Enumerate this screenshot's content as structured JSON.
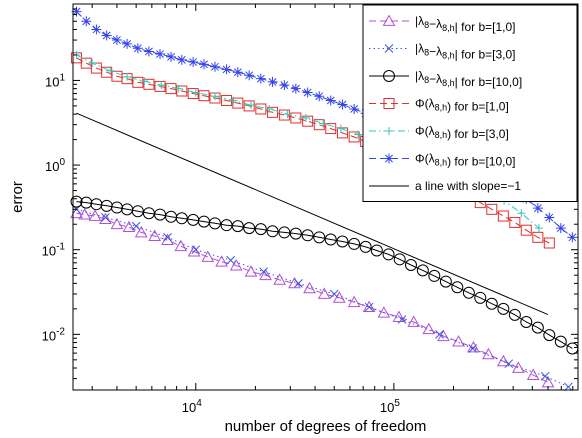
{
  "chart_data": {
    "type": "line",
    "title": "",
    "xlabel": "number of degrees of freedom",
    "ylabel": "error",
    "x_scale": "log",
    "y_scale": "log",
    "xlim": [
      2400,
      850000
    ],
    "ylim": [
      0.0022,
      80
    ],
    "x_ticks": [
      {
        "value": 10000,
        "mantissa": "10",
        "exp": "4"
      },
      {
        "value": 100000,
        "mantissa": "10",
        "exp": "5"
      }
    ],
    "y_ticks": [
      {
        "value": 0.01,
        "mantissa": "10",
        "exp": "-2"
      },
      {
        "value": 0.1,
        "mantissa": "10",
        "exp": "-1"
      },
      {
        "value": 1,
        "mantissa": "10",
        "exp": "0"
      },
      {
        "value": 10,
        "mantissa": "10",
        "exp": "1"
      }
    ],
    "grid": false,
    "legend_position": "top-right",
    "series": [
      {
        "name": "|λ8−λ8,h| for b=[1,0]",
        "color": "#b24fd8",
        "marker": "triangle",
        "dash": "dashed",
        "x": [
          2500,
          2750,
          3100,
          3500,
          4000,
          4600,
          5300,
          6200,
          7200,
          8400,
          9800,
          11500,
          13500,
          16000,
          19000,
          22500,
          26500,
          31500,
          37500,
          44500,
          53000,
          63000,
          75000,
          89000,
          106000,
          126000,
          150000,
          178000,
          212000,
          252000,
          300000,
          357000,
          425000,
          505000,
          600000
        ],
        "y": [
          0.27,
          0.26,
          0.25,
          0.23,
          0.2,
          0.185,
          0.16,
          0.145,
          0.13,
          0.11,
          0.095,
          0.082,
          0.072,
          0.065,
          0.055,
          0.05,
          0.044,
          0.04,
          0.035,
          0.03,
          0.027,
          0.024,
          0.021,
          0.018,
          0.016,
          0.014,
          0.0115,
          0.0095,
          0.0082,
          0.007,
          0.0058,
          0.0048,
          0.004,
          0.0033,
          0.0027
        ]
      },
      {
        "name": "|λ8−λ8,h| for b=[3,0]",
        "color": "#3a58d8",
        "marker": "x",
        "dash": "dotted",
        "x": [
          2500,
          3500,
          5000,
          7200,
          10000,
          15000,
          22000,
          33000,
          50000,
          75000,
          110000,
          170000,
          250000,
          380000,
          580000,
          760000
        ],
        "y": [
          0.3,
          0.24,
          0.19,
          0.14,
          0.1,
          0.075,
          0.055,
          0.04,
          0.03,
          0.021,
          0.015,
          0.01,
          0.0068,
          0.0045,
          0.0032,
          0.0024
        ]
      },
      {
        "name": "|λ8−λ8,h| for b=[10,0]",
        "color": "#000000",
        "marker": "circle",
        "dash": "solid",
        "x": [
          2500,
          2800,
          3150,
          3550,
          4000,
          4500,
          5100,
          5800,
          6600,
          7500,
          8500,
          9700,
          11000,
          12500,
          14300,
          16300,
          18600,
          21300,
          24400,
          28000,
          32000,
          36700,
          42000,
          48000,
          55000,
          63000,
          72000,
          82000,
          94000,
          107000,
          122000,
          140000,
          160000,
          183000,
          209000,
          239000,
          273000,
          312000,
          357000,
          408000,
          466000,
          533000,
          609000,
          696000,
          796000
        ],
        "y": [
          0.37,
          0.36,
          0.345,
          0.33,
          0.315,
          0.3,
          0.285,
          0.27,
          0.26,
          0.245,
          0.235,
          0.225,
          0.215,
          0.205,
          0.195,
          0.19,
          0.18,
          0.175,
          0.165,
          0.16,
          0.155,
          0.148,
          0.14,
          0.132,
          0.125,
          0.117,
          0.108,
          0.098,
          0.088,
          0.077,
          0.066,
          0.057,
          0.049,
          0.042,
          0.036,
          0.031,
          0.027,
          0.023,
          0.02,
          0.017,
          0.014,
          0.012,
          0.0098,
          0.0082,
          0.0068
        ]
      },
      {
        "name": "Φ(λ8,h) for b=[1,0]",
        "color": "#e03030",
        "marker": "square",
        "dash": "dashed",
        "x": [
          2500,
          2800,
          3150,
          3550,
          4000,
          4500,
          5100,
          5800,
          6600,
          7500,
          8500,
          9700,
          11000,
          12500,
          14300,
          16300,
          18600,
          21300,
          24400,
          28000,
          32000,
          36700,
          42000,
          48000,
          55000,
          63000,
          72000,
          82000,
          94000,
          107000,
          122000,
          140000,
          160000,
          183000,
          209000,
          239000,
          273000,
          312000,
          357000,
          408000,
          466000,
          533000,
          609000
        ],
        "y": [
          18.5,
          16,
          14,
          12.5,
          11.2,
          10.5,
          9.5,
          9,
          8.5,
          8,
          7.5,
          7,
          6.6,
          6.2,
          5.8,
          5.4,
          5,
          4.6,
          4.2,
          3.9,
          3.6,
          3.3,
          3,
          2.7,
          2.4,
          2.15,
          1.9,
          1.65,
          1.45,
          1.25,
          1.05,
          0.9,
          0.75,
          0.63,
          0.52,
          0.43,
          0.36,
          0.3,
          0.25,
          0.21,
          0.17,
          0.14,
          0.12
        ]
      },
      {
        "name": "Φ(λ8,h) for b=[3,0]",
        "color": "#38c6b8",
        "marker": "plus",
        "dash": "dashdot",
        "x": [
          2500,
          3000,
          3700,
          4500,
          5500,
          6700,
          8200,
          10000,
          12500,
          15500,
          19000,
          23500,
          29000,
          36000,
          44000,
          54000,
          66000,
          82000,
          100000,
          125000,
          155000,
          190000,
          235000,
          290000,
          360000,
          440000,
          540000
        ],
        "y": [
          20,
          16,
          13,
          11,
          9.8,
          8.8,
          8,
          7.2,
          6.5,
          5.8,
          5.1,
          4.6,
          4,
          3.6,
          3.1,
          2.7,
          2.3,
          1.95,
          1.6,
          1.3,
          1.05,
          0.85,
          0.66,
          0.51,
          0.38,
          0.27,
          0.18
        ]
      },
      {
        "name": "Φ(λ8,h) for b=[10,0]",
        "color": "#3344ee",
        "marker": "star",
        "dash": "dashed",
        "x": [
          2500,
          2800,
          3150,
          3550,
          4000,
          4500,
          5100,
          5800,
          6600,
          7500,
          8500,
          9700,
          11000,
          12500,
          14300,
          16300,
          18600,
          21300,
          24400,
          28000,
          32000,
          36700,
          42000,
          48000,
          55000,
          63000,
          72000,
          82000,
          94000,
          107000,
          122000,
          140000,
          160000,
          183000,
          209000,
          239000,
          273000,
          312000,
          357000,
          408000,
          466000,
          533000,
          609000,
          696000,
          796000
        ],
        "y": [
          65,
          50,
          40,
          34,
          30,
          27,
          24,
          22,
          20.5,
          19,
          17.5,
          16.5,
          15.5,
          14.5,
          13.5,
          12.5,
          11.5,
          10.5,
          9.6,
          8.8,
          8,
          7.2,
          6.5,
          5.8,
          5.2,
          4.6,
          4.1,
          3.6,
          3.2,
          2.8,
          2.4,
          2.1,
          1.8,
          1.55,
          1.3,
          1.1,
          0.92,
          0.76,
          0.62,
          0.5,
          0.4,
          0.31,
          0.24,
          0.18,
          0.14
        ]
      },
      {
        "name": "a line with slope=−1",
        "color": "#000000",
        "marker": "none",
        "dash": "solid",
        "x": [
          2500,
          600000
        ],
        "y": [
          4.1,
          0.0171
        ]
      }
    ],
    "legend": [
      {
        "text": "|λ8−λ8,h| for b=[1,0]",
        "series": 0,
        "t": "|λ",
        "s1": "8",
        "m": "−λ",
        "s2": "8,h",
        "r": "| for b=[1,0]"
      },
      {
        "text": "|λ8−λ8,h| for b=[3,0]",
        "series": 1,
        "t": "|λ",
        "s1": "8",
        "m": "−λ",
        "s2": "8,h",
        "r": "| for b=[3,0]"
      },
      {
        "text": "|λ8−λ8,h| for b=[10,0]",
        "series": 2,
        "t": "|λ",
        "s1": "8",
        "m": "−λ",
        "s2": "8,h",
        "r": "| for b=[10,0]"
      },
      {
        "text": "Φ(λ8,h) for b=[1,0]",
        "series": 3,
        "t": "Φ(λ",
        "s1": "8,h",
        "m": "",
        "s2": "",
        "r": ") for b=[1,0]"
      },
      {
        "text": "Φ(λ8,h) for b=[3,0]",
        "series": 4,
        "t": "Φ(λ",
        "s1": "8,h",
        "m": "",
        "s2": "",
        "r": ") for b=[3,0]"
      },
      {
        "text": "Φ(λ8,h) for b=[10,0]",
        "series": 5,
        "t": "Φ(λ",
        "s1": "8,h",
        "m": "",
        "s2": "",
        "r": ") for b=[10,0]"
      },
      {
        "text": "a line with slope=−1",
        "series": 6,
        "t": "a line with slope=−1",
        "s1": "",
        "m": "",
        "s2": "",
        "r": ""
      }
    ]
  }
}
